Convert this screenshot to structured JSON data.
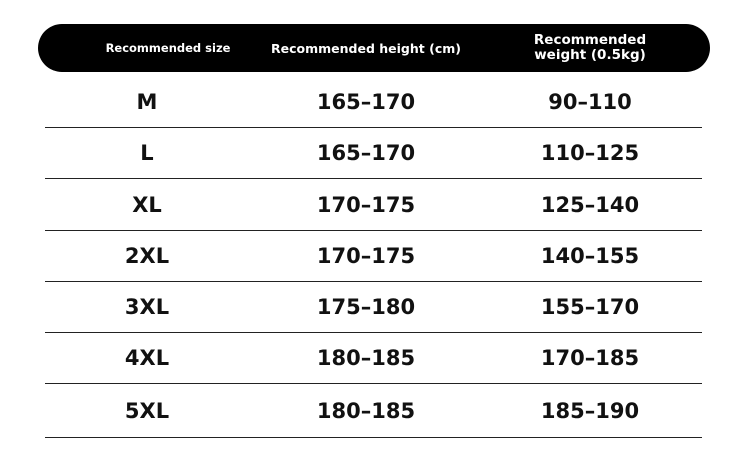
{
  "header": {
    "size": "Recommended size",
    "height": "Recommended height (cm)",
    "weight": "Recommended weight (0.5kg)"
  },
  "rows": [
    {
      "size": "M",
      "height": "165–170",
      "weight": "90–110"
    },
    {
      "size": "L",
      "height": "165–170",
      "weight": "110–125"
    },
    {
      "size": "XL",
      "height": "170–175",
      "weight": "125–140"
    },
    {
      "size": "2XL",
      "height": "170–175",
      "weight": "140–155"
    },
    {
      "size": "3XL",
      "height": "175–180",
      "weight": "155–170"
    },
    {
      "size": "4XL",
      "height": "180–185",
      "weight": "170–185"
    },
    {
      "size": "5XL",
      "height": "180–185",
      "weight": "185–190"
    }
  ]
}
